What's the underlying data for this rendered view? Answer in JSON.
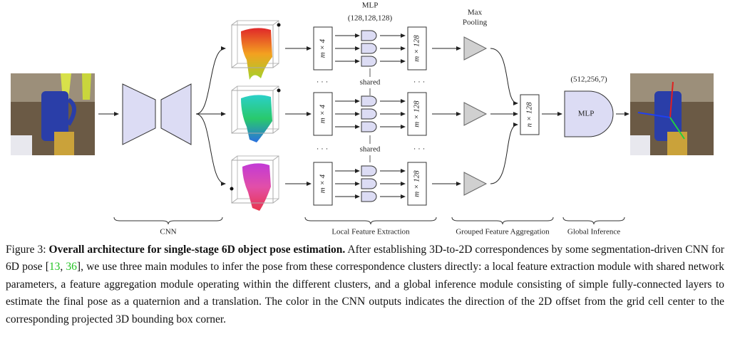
{
  "figure": {
    "mlp_title": "MLP",
    "mlp_dims": "(128,128,128)",
    "pool_title_1": "Max",
    "pool_title_2": "Pooling",
    "global_dims": "(512,256,7)",
    "global_mlp": "MLP",
    "agg_label": "n × 128",
    "branches": [
      {
        "in_label": "m × 4",
        "out_label": "m × 128"
      },
      {
        "in_label": "m × 4",
        "out_label": "m × 128"
      },
      {
        "in_label": "m × 4",
        "out_label": "m × 128"
      }
    ],
    "separators": [
      {
        "left": "· · ·",
        "shared": "shared",
        "right": "· · ·"
      },
      {
        "left": "· · ·",
        "shared": "shared",
        "right": "· · ·"
      }
    ],
    "stages": [
      "CNN",
      "Local Feature Extraction",
      "Grouped Feature Aggregation",
      "Global Inference"
    ]
  },
  "caption": {
    "label": "Figure 3:",
    "title": "Overall architecture for single-stage 6D object pose estimation.",
    "text_1": "After establishing 3D-to-2D correspondences by some segmentation-driven CNN for 6D pose [",
    "cite_1": "13",
    "text_2": ", ",
    "cite_2": "36",
    "text_3": "], we use three main modules to infer the pose from these correspondence clusters directly: a local feature extraction module with shared network parameters, a feature aggregation module operating within the different clusters, and a global inference module consisting of simple fully-connected layers to estimate the final pose as a quaternion and a translation. The color in the CNN outputs indicates the direction of the 2D offset from the grid cell center to the corresponding projected 3D bounding box corner."
  }
}
